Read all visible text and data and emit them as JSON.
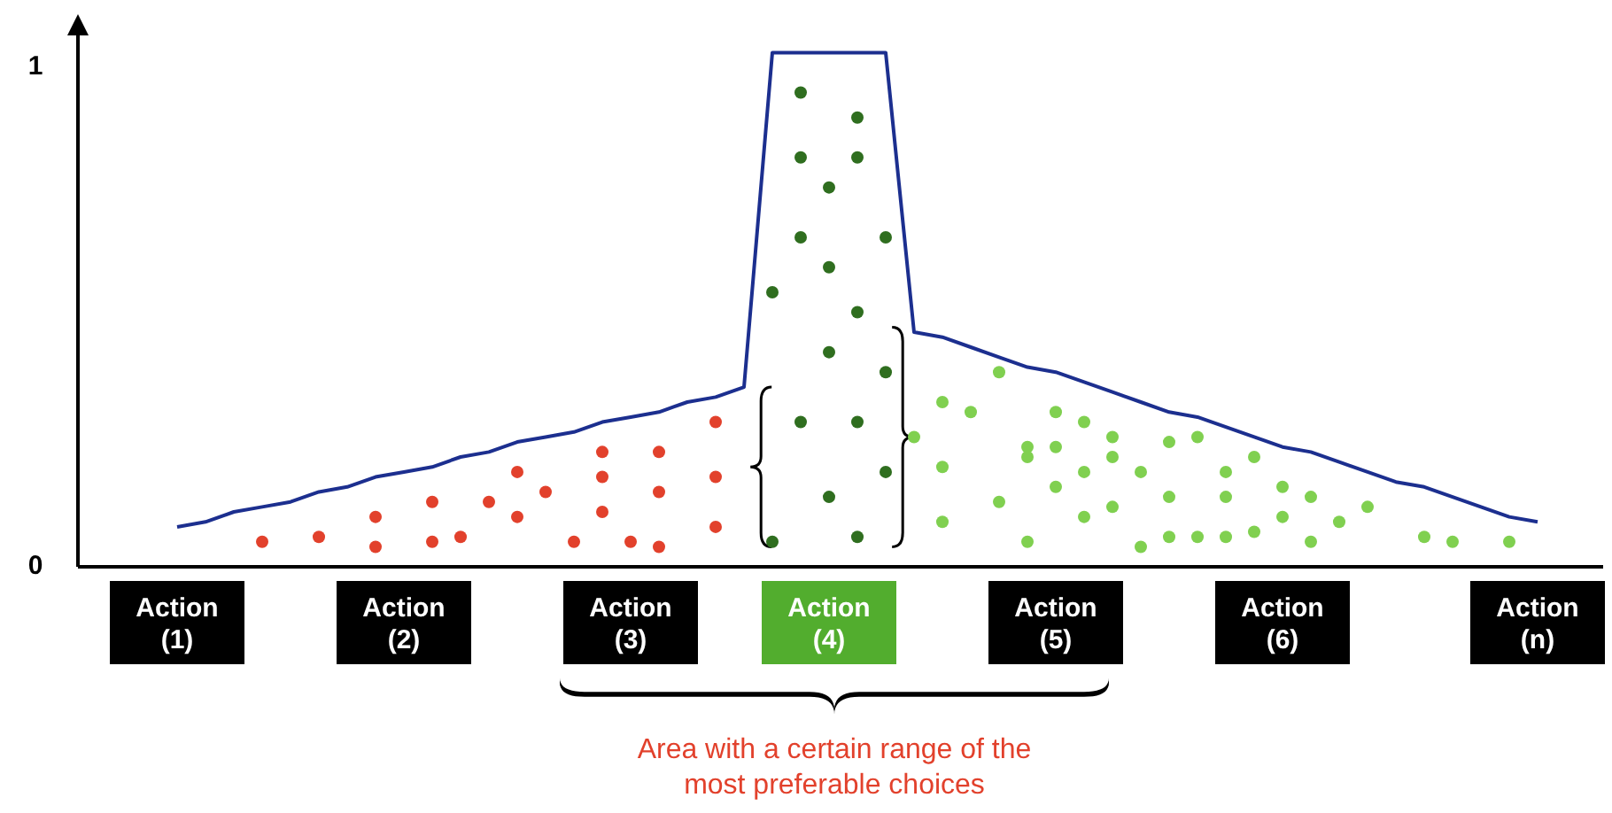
{
  "chart_data": {
    "type": "line",
    "ylim": [
      0,
      1.1
    ],
    "categories": [
      "Action\n(1)",
      null,
      null,
      null,
      null,
      null,
      null,
      null,
      "Action\n(2)",
      null,
      null,
      null,
      null,
      null,
      null,
      null,
      "Action\n(3)",
      null,
      null,
      null,
      null,
      null,
      null,
      "Action\n(4)",
      null,
      null,
      null,
      null,
      null,
      null,
      null,
      "Action\n(5)",
      null,
      null,
      null,
      null,
      null,
      null,
      null,
      "Action\n(6)",
      null,
      null,
      null,
      null,
      null,
      null,
      null,
      null,
      "Action\n(n)"
    ],
    "yticks": [
      0,
      1
    ],
    "annotations": [
      "Area with a certain range of the most preferable choices"
    ],
    "series": [
      {
        "color": "#1c2f8f",
        "marker": "none",
        "values": [
          0.08,
          0.09,
          0.11,
          0.12,
          0.13,
          0.15,
          0.16,
          0.18,
          0.19,
          0.2,
          0.22,
          0.23,
          0.25,
          0.26,
          0.27,
          0.29,
          0.3,
          0.31,
          0.33,
          0.34,
          0.36,
          1.03,
          1.03,
          1.03,
          1.03,
          1.03,
          0.47,
          0.46,
          0.44,
          0.42,
          0.4,
          0.39,
          0.37,
          0.35,
          0.33,
          0.31,
          0.3,
          0.28,
          0.26,
          0.24,
          0.23,
          0.21,
          0.19,
          0.17,
          0.16,
          0.14,
          0.12,
          0.1,
          0.09
        ]
      },
      {
        "type": "scatter",
        "color": "#e2412c",
        "marker": "circle",
        "values": [
          null,
          null,
          null,
          0.05,
          null,
          0.06,
          null,
          0.04,
          null,
          0.05,
          0.06,
          0.13,
          0.19,
          0.15,
          0.05,
          0.23,
          0.05,
          0.23,
          null,
          0.29,
          null,
          null,
          null,
          null,
          null,
          null,
          null,
          null,
          null,
          null,
          null,
          null,
          null,
          null,
          null,
          null,
          null,
          null,
          null,
          null,
          null,
          null,
          null,
          null,
          null,
          null,
          null,
          null,
          null
        ]
      },
      {
        "type": "scatter",
        "color": "#e2412c",
        "marker": "circle",
        "values": [
          null,
          null,
          null,
          null,
          null,
          null,
          null,
          0.1,
          null,
          0.13,
          null,
          null,
          0.1,
          null,
          null,
          0.11,
          null,
          0.15,
          null,
          0.18,
          null,
          null,
          null,
          null,
          null,
          null,
          null,
          null,
          null,
          null,
          null,
          null,
          null,
          null,
          null,
          null,
          null,
          null,
          null,
          null,
          null,
          null,
          null,
          null,
          null,
          null,
          null,
          null,
          null
        ]
      },
      {
        "type": "scatter",
        "color": "#e2412c",
        "marker": "circle",
        "values": [
          null,
          null,
          null,
          null,
          null,
          null,
          null,
          null,
          null,
          null,
          null,
          null,
          null,
          null,
          null,
          0.18,
          null,
          0.04,
          null,
          0.08,
          null,
          null,
          null,
          null,
          null,
          null,
          null,
          null,
          null,
          null,
          null,
          null,
          null,
          null,
          null,
          null,
          null,
          null,
          null,
          null,
          null,
          null,
          null,
          null,
          null,
          null,
          null,
          null,
          null
        ]
      },
      {
        "type": "scatter",
        "color": "#2f6e1f",
        "marker": "circle",
        "values": [
          null,
          null,
          null,
          null,
          null,
          null,
          null,
          null,
          null,
          null,
          null,
          null,
          null,
          null,
          null,
          null,
          null,
          null,
          null,
          null,
          null,
          0.55,
          0.95,
          0.76,
          0.9,
          0.66,
          null,
          null,
          null,
          null,
          null,
          null,
          null,
          null,
          null,
          null,
          null,
          null,
          null,
          null,
          null,
          null,
          null,
          null,
          null,
          null,
          null,
          null,
          null
        ]
      },
      {
        "type": "scatter",
        "color": "#2f6e1f",
        "marker": "circle",
        "values": [
          null,
          null,
          null,
          null,
          null,
          null,
          null,
          null,
          null,
          null,
          null,
          null,
          null,
          null,
          null,
          null,
          null,
          null,
          null,
          null,
          null,
          0.05,
          0.82,
          0.6,
          0.82,
          0.39,
          null,
          null,
          null,
          null,
          null,
          null,
          null,
          null,
          null,
          null,
          null,
          null,
          null,
          null,
          null,
          null,
          null,
          null,
          null,
          null,
          null,
          null,
          null
        ]
      },
      {
        "type": "scatter",
        "color": "#2f6e1f",
        "marker": "circle",
        "values": [
          null,
          null,
          null,
          null,
          null,
          null,
          null,
          null,
          null,
          null,
          null,
          null,
          null,
          null,
          null,
          null,
          null,
          null,
          null,
          null,
          null,
          null,
          0.66,
          0.43,
          0.51,
          0.19,
          null,
          null,
          null,
          null,
          null,
          null,
          null,
          null,
          null,
          null,
          null,
          null,
          null,
          null,
          null,
          null,
          null,
          null,
          null,
          null,
          null,
          null,
          null
        ]
      },
      {
        "type": "scatter",
        "color": "#2f6e1f",
        "marker": "circle",
        "values": [
          null,
          null,
          null,
          null,
          null,
          null,
          null,
          null,
          null,
          null,
          null,
          null,
          null,
          null,
          null,
          null,
          null,
          null,
          null,
          null,
          null,
          null,
          0.29,
          0.14,
          0.29,
          null,
          null,
          null,
          null,
          null,
          null,
          null,
          null,
          null,
          null,
          null,
          null,
          null,
          null,
          null,
          null,
          null,
          null,
          null,
          null,
          null,
          null,
          null,
          null
        ]
      },
      {
        "type": "scatter",
        "color": "#2f6e1f",
        "marker": "circle",
        "values": [
          null,
          null,
          null,
          null,
          null,
          null,
          null,
          null,
          null,
          null,
          null,
          null,
          null,
          null,
          null,
          null,
          null,
          null,
          null,
          null,
          null,
          null,
          null,
          null,
          0.06,
          null,
          null,
          null,
          null,
          null,
          null,
          null,
          null,
          null,
          null,
          null,
          null,
          null,
          null,
          null,
          null,
          null,
          null,
          null,
          null,
          null,
          null,
          null,
          null
        ]
      },
      {
        "type": "scatter",
        "color": "#80d050",
        "marker": "circle",
        "values": [
          null,
          null,
          null,
          null,
          null,
          null,
          null,
          null,
          null,
          null,
          null,
          null,
          null,
          null,
          null,
          null,
          null,
          null,
          null,
          null,
          null,
          null,
          null,
          null,
          null,
          null,
          0.26,
          0.33,
          0.31,
          0.39,
          0.24,
          0.31,
          0.29,
          0.26,
          0.19,
          0.25,
          0.26,
          0.19,
          0.22,
          0.16,
          0.14,
          0.09,
          0.12,
          null,
          0.06,
          0.05,
          null,
          0.05,
          null
        ]
      },
      {
        "type": "scatter",
        "color": "#80d050",
        "marker": "circle",
        "values": [
          null,
          null,
          null,
          null,
          null,
          null,
          null,
          null,
          null,
          null,
          null,
          null,
          null,
          null,
          null,
          null,
          null,
          null,
          null,
          null,
          null,
          null,
          null,
          null,
          null,
          null,
          null,
          0.2,
          null,
          0.13,
          0.22,
          0.24,
          0.19,
          0.22,
          0.04,
          0.14,
          0.06,
          0.14,
          0.07,
          0.1,
          0.05,
          null,
          null,
          null,
          null,
          null,
          null,
          null,
          null
        ]
      },
      {
        "type": "scatter",
        "color": "#80d050",
        "marker": "circle",
        "values": [
          null,
          null,
          null,
          null,
          null,
          null,
          null,
          null,
          null,
          null,
          null,
          null,
          null,
          null,
          null,
          null,
          null,
          null,
          null,
          null,
          null,
          null,
          null,
          null,
          null,
          null,
          null,
          0.09,
          null,
          null,
          0.05,
          0.16,
          0.1,
          0.12,
          null,
          0.06,
          null,
          0.06,
          null,
          null,
          null,
          null,
          null,
          null,
          null,
          null,
          null,
          null,
          null
        ]
      }
    ]
  }
}
